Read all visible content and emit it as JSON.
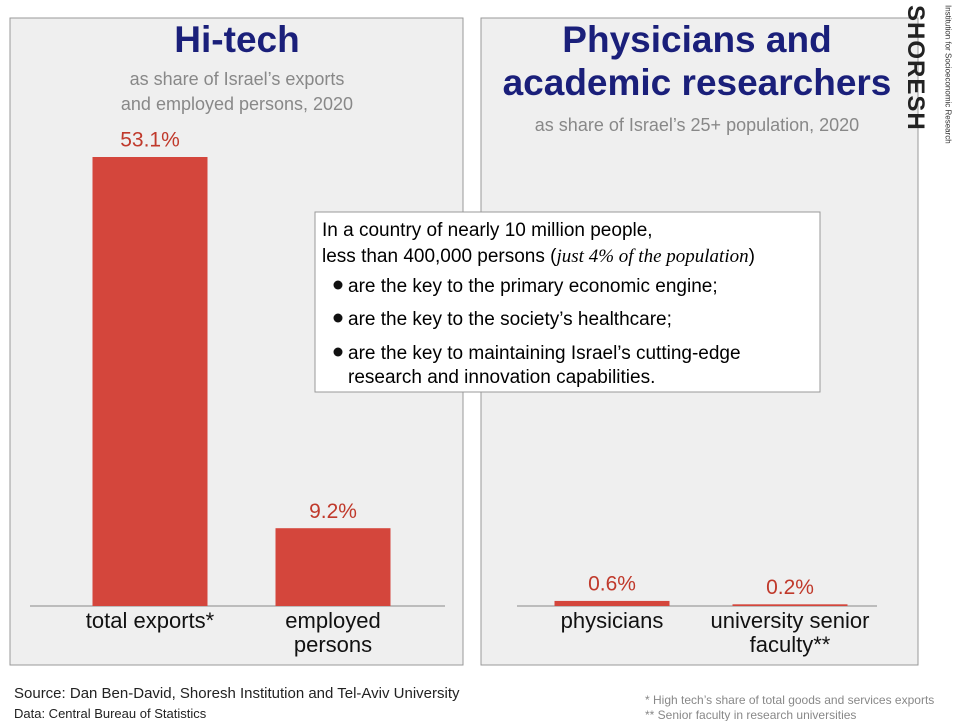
{
  "chart_data": [
    {
      "type": "bar",
      "title": "Hi-tech",
      "subtitle": [
        "as share of Israel’s exports",
        "and employed persons, 2020"
      ],
      "categories": [
        "total exports*",
        "employed persons"
      ],
      "values": [
        53.1,
        9.2
      ],
      "value_labels": [
        "53.1%",
        "9.2%"
      ],
      "color": "#d4463c"
    },
    {
      "type": "bar",
      "title": [
        "Physicians and",
        "academic researchers"
      ],
      "subtitle": [
        "as share of Israel’s 25+ population, 2020"
      ],
      "categories": [
        "physicians",
        "university senior faculty**"
      ],
      "values": [
        0.6,
        0.2
      ],
      "value_labels": [
        "0.6%",
        "0.2%"
      ],
      "color": "#d4463c"
    }
  ],
  "note": {
    "line1": "In a country of nearly 10 million people,",
    "line2a": "less than 400,000 persons (",
    "line2b": "just 4% of the population",
    "line2c": ")",
    "bullets": [
      "are the key to the primary economic engine;",
      "are the key to the society’s healthcare;",
      "are the key to maintaining Israel’s cutting-edge",
      "research and innovation capabilities."
    ]
  },
  "logo": {
    "name": "SHORESH",
    "tagline": "Institution for Socioeconomic Research"
  },
  "source": "Source: Dan Ben-David, Shoresh Institution and Tel-Aviv University",
  "data_source": "Data: Central Bureau of Statistics",
  "footnotes": [
    "* High tech’s share of total goods and services exports",
    "** Senior faculty in research universities"
  ]
}
